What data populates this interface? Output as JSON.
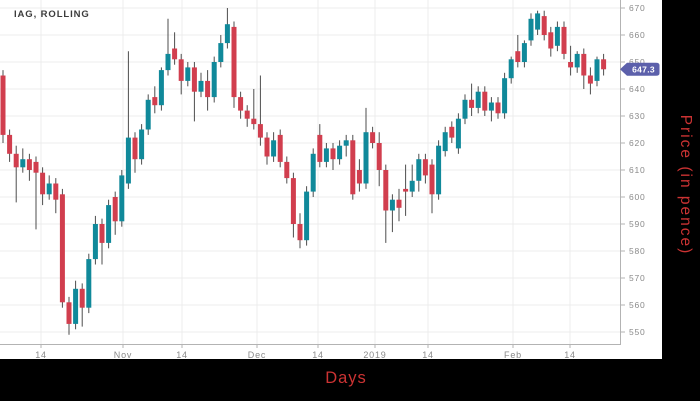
{
  "chart_data": {
    "type": "candlestick",
    "title": "IAG, ROLLING",
    "xlabel": "Days",
    "ylabel": "Price (in pence)",
    "last_price": 647.3,
    "last_price_label": "647.3",
    "ylim": [
      544.5,
      673
    ],
    "grid": true,
    "y_ticks": [
      550,
      560,
      570,
      580,
      590,
      600,
      610,
      620,
      630,
      640,
      650,
      660,
      670
    ],
    "x_ticks": [
      {
        "label": "14",
        "x": 41
      },
      {
        "label": "Nov",
        "x": 123
      },
      {
        "label": "14",
        "x": 182
      },
      {
        "label": "Dec",
        "x": 257
      },
      {
        "label": "14",
        "x": 318
      },
      {
        "label": "2019",
        "x": 375
      },
      {
        "label": "14",
        "x": 428
      },
      {
        "label": "Feb",
        "x": 513
      },
      {
        "label": "14",
        "x": 570
      }
    ],
    "colors": {
      "up": "#10899a",
      "down": "#d13e4e",
      "wick": "#4d4d4d",
      "badge": "#5c60ab",
      "badge_text": "#ffffff",
      "axis_titles": "#cc3333",
      "grid": "#ececec",
      "axis_line": "#b3b3b3",
      "tick_text": "#8a8a8a",
      "title_text": "#3c3c3c",
      "figure_bg": "#ffffff",
      "canvas_bg": "#000000"
    },
    "candles": [
      [
        645,
        647,
        620,
        623
      ],
      [
        623,
        625,
        613,
        616
      ],
      [
        616,
        619,
        598,
        611
      ],
      [
        611,
        618,
        609,
        614
      ],
      [
        614,
        616,
        606,
        610
      ],
      [
        613,
        615,
        588,
        609
      ],
      [
        609,
        611,
        597,
        601
      ],
      [
        601,
        608,
        599,
        605
      ],
      [
        605,
        607,
        594,
        599
      ],
      [
        601,
        603,
        559,
        561
      ],
      [
        561,
        563,
        549,
        553
      ],
      [
        553,
        569,
        551,
        566
      ],
      [
        566,
        568,
        552,
        559
      ],
      [
        559,
        579,
        557,
        577
      ],
      [
        577,
        593,
        575,
        590
      ],
      [
        590,
        592,
        575,
        583
      ],
      [
        583,
        599,
        581,
        597
      ],
      [
        600,
        602,
        586,
        591
      ],
      [
        591,
        610,
        589,
        608
      ],
      [
        605,
        654,
        603,
        622
      ],
      [
        622,
        624,
        609,
        614
      ],
      [
        614,
        627,
        612,
        625
      ],
      [
        625,
        638,
        623,
        636
      ],
      [
        637,
        641,
        631,
        634
      ],
      [
        634,
        648,
        632,
        647
      ],
      [
        647,
        666,
        645,
        653
      ],
      [
        655,
        661,
        649,
        651
      ],
      [
        651,
        653,
        638,
        643
      ],
      [
        643,
        650,
        641,
        648
      ],
      [
        648,
        650,
        628,
        639
      ],
      [
        639,
        646,
        637,
        643
      ],
      [
        643,
        647,
        632,
        637
      ],
      [
        637,
        652,
        635,
        650
      ],
      [
        650,
        660,
        648,
        657
      ],
      [
        657,
        670,
        655,
        664
      ],
      [
        663,
        665,
        633,
        637
      ],
      [
        637,
        639,
        629,
        632
      ],
      [
        632,
        634,
        626,
        629
      ],
      [
        629,
        640,
        625,
        627
      ],
      [
        627,
        645,
        619,
        622
      ],
      [
        622,
        624,
        612,
        615
      ],
      [
        615,
        624,
        613,
        621
      ],
      [
        623,
        625,
        611,
        613
      ],
      [
        613,
        615,
        605,
        607
      ],
      [
        607,
        609,
        585,
        590
      ],
      [
        590,
        594,
        581,
        584
      ],
      [
        584,
        604,
        582,
        602
      ],
      [
        602,
        618,
        600,
        616
      ],
      [
        623,
        627,
        611,
        613
      ],
      [
        613,
        620,
        611,
        618
      ],
      [
        618,
        620,
        610,
        614
      ],
      [
        614,
        621,
        612,
        619
      ],
      [
        619,
        623,
        615,
        621
      ],
      [
        621,
        623,
        599,
        601
      ],
      [
        610,
        614,
        602,
        605
      ],
      [
        605,
        633,
        603,
        624
      ],
      [
        624,
        626,
        618,
        620
      ],
      [
        620,
        624,
        604,
        610
      ],
      [
        610,
        612,
        583,
        595
      ],
      [
        595,
        601,
        587,
        599
      ],
      [
        599,
        603,
        591,
        596
      ],
      [
        603,
        612,
        593,
        602
      ],
      [
        602,
        612,
        600,
        606
      ],
      [
        606,
        616,
        602,
        614
      ],
      [
        614,
        616,
        605,
        608
      ],
      [
        612,
        614,
        594,
        601
      ],
      [
        601,
        621,
        599,
        619
      ],
      [
        617,
        626,
        615,
        624
      ],
      [
        626,
        628,
        620,
        622
      ],
      [
        618,
        631,
        616,
        629
      ],
      [
        629,
        638,
        627,
        636
      ],
      [
        636,
        642,
        630,
        633
      ],
      [
        633,
        641,
        631,
        639
      ],
      [
        639,
        641,
        630,
        632
      ],
      [
        632,
        637,
        628,
        635
      ],
      [
        635,
        637,
        629,
        631
      ],
      [
        631,
        646,
        629,
        644
      ],
      [
        644,
        652,
        642,
        651
      ],
      [
        654,
        660,
        648,
        650
      ],
      [
        650,
        658,
        648,
        657
      ],
      [
        658,
        668,
        656,
        666
      ],
      [
        662,
        669,
        660,
        668
      ],
      [
        667,
        669,
        658,
        660
      ],
      [
        661,
        663,
        652,
        655
      ],
      [
        656,
        665,
        654,
        663
      ],
      [
        663,
        665,
        651,
        653
      ],
      [
        650,
        656,
        645,
        648
      ],
      [
        648,
        654,
        646,
        653
      ],
      [
        653,
        655,
        640,
        645
      ],
      [
        645,
        648,
        638,
        642
      ],
      [
        643,
        652,
        641,
        651
      ],
      [
        651,
        653,
        645,
        647.3
      ]
    ]
  }
}
